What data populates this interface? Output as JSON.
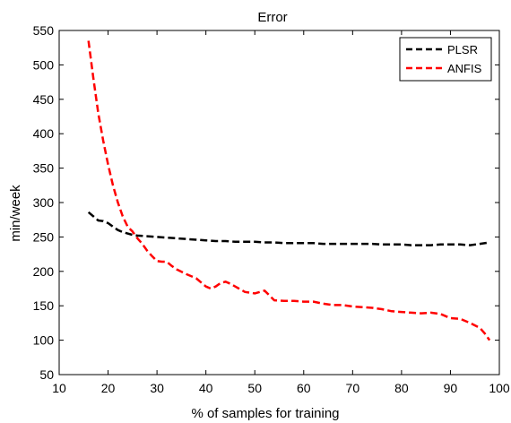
{
  "chart_data": {
    "type": "line",
    "title": "Error",
    "xlabel": "% of samples for training",
    "ylabel": "min/week",
    "xlim": [
      10,
      100
    ],
    "ylim": [
      50,
      550
    ],
    "xticks": [
      10,
      20,
      30,
      40,
      50,
      60,
      70,
      80,
      90,
      100
    ],
    "yticks": [
      50,
      100,
      150,
      200,
      250,
      300,
      350,
      400,
      450,
      500,
      550
    ],
    "grid": false,
    "legend_position": "top-right",
    "series": [
      {
        "name": "PLSR",
        "color": "#000000",
        "line_style": "dashed",
        "x": [
          16,
          17,
          18,
          19,
          20,
          21,
          22,
          23,
          24,
          25,
          26,
          28,
          30,
          32,
          34,
          36,
          38,
          40,
          42,
          44,
          46,
          48,
          50,
          52,
          54,
          56,
          58,
          60,
          62,
          64,
          66,
          68,
          70,
          72,
          74,
          76,
          78,
          80,
          82,
          84,
          86,
          88,
          90,
          92,
          94,
          96,
          98
        ],
        "y": [
          286,
          280,
          274,
          273,
          270,
          265,
          260,
          257,
          255,
          253,
          252,
          251,
          250,
          249,
          248,
          247,
          246,
          245,
          244,
          244,
          243,
          243,
          243,
          242,
          242,
          241,
          241,
          241,
          241,
          240,
          240,
          240,
          240,
          240,
          240,
          239,
          239,
          239,
          238,
          238,
          238,
          239,
          239,
          239,
          238,
          240,
          242
        ]
      },
      {
        "name": "ANFIS",
        "color": "#ff0000",
        "line_style": "dashed",
        "x": [
          16,
          17,
          18,
          19,
          20,
          21,
          22,
          23,
          24,
          25,
          26,
          27,
          28,
          29,
          30,
          31,
          32,
          33,
          34,
          36,
          38,
          40,
          41,
          42,
          43,
          44,
          45,
          46,
          48,
          50,
          51,
          52,
          53,
          54,
          56,
          58,
          60,
          62,
          64,
          66,
          68,
          70,
          72,
          74,
          76,
          78,
          80,
          82,
          84,
          86,
          88,
          90,
          92,
          94,
          96,
          97,
          98
        ],
        "y": [
          535,
          480,
          430,
          390,
          355,
          325,
          300,
          280,
          265,
          258,
          248,
          240,
          230,
          222,
          215,
          214,
          214,
          208,
          203,
          196,
          190,
          178,
          175,
          178,
          183,
          185,
          182,
          178,
          170,
          168,
          170,
          172,
          165,
          158,
          157,
          157,
          156,
          156,
          153,
          151,
          151,
          149,
          148,
          147,
          145,
          142,
          141,
          140,
          139,
          140,
          138,
          132,
          131,
          125,
          118,
          110,
          100
        ]
      }
    ]
  }
}
